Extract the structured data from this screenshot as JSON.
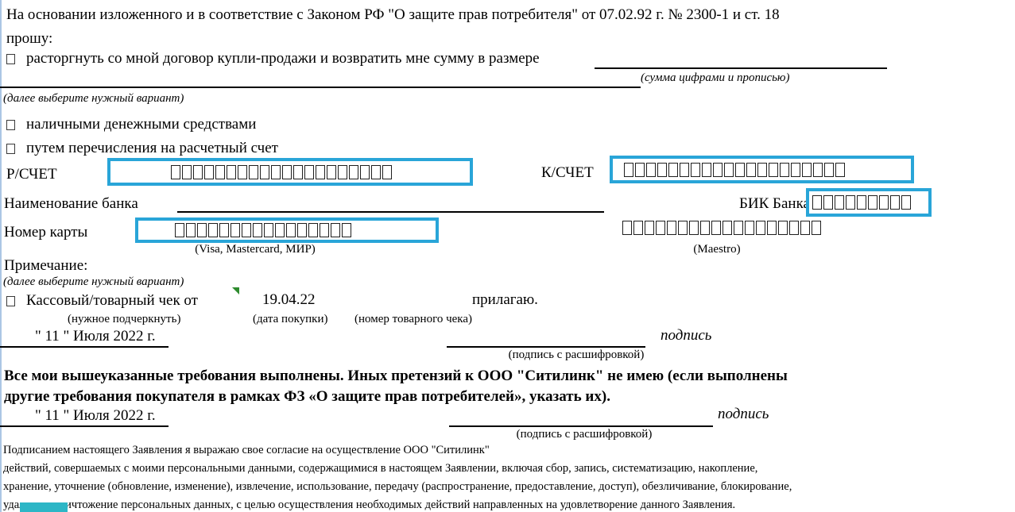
{
  "intro": {
    "line1": "На основании изложенного и в соответствие с Законом РФ \"О защите прав потребителя\" от 07.02.92 г. № 2300-1 и ст. 18",
    "line2": "прошу:"
  },
  "options": {
    "refund": "расторгнуть со мной договор купли-продажи и возвратить мне сумму в размере",
    "cash": "наличными денежными средствами",
    "transfer": "путем перечисления на расчетный счет"
  },
  "captions": {
    "sum": "(сумма цифрами и прописью)",
    "variant_hint": "(далее выберите нужный вариант)"
  },
  "fields": {
    "rschet_label": "Р/СЧЕТ",
    "rschet_cells": 20,
    "kschet_label": "К/СЧЕТ",
    "kschet_cells": 20,
    "bank_name_label": "Наименование банка",
    "bik_label": "БИК Банка",
    "bik_cells": 9,
    "card_label": "Номер карты",
    "card_cells": 16,
    "card_caption": "(Visa, Mastercard, МИР)",
    "maestro_cells": 18,
    "maestro_caption": "(Maestro)"
  },
  "note": {
    "label": "Примечание:",
    "hint": "(далее выберите нужный вариант)"
  },
  "receipt": {
    "option": "Кассовый/товарный чек от",
    "date_value": "19.04.22",
    "attach": "прилагаю.",
    "underline_hint": "(нужное подчеркнуть)",
    "date_hint": "(дата покупки)",
    "number_hint": "(номер товарного чека)"
  },
  "sign1": {
    "date": "\" 11 \" Июля 2022 г.",
    "word": "подпись",
    "caption": "(подпись с расшифровкой)"
  },
  "claims": {
    "line1": "Все мои вышеуказанные требования выполнены. Иных претензий к ООО \"Ситилинк\" не имею (если выполнены",
    "line2": "другие требования покупателя в рамках ФЗ «О защите прав потребителей», указать их)."
  },
  "sign2": {
    "date": "\" 11 \" Июля 2022 г.",
    "word": "подпись",
    "caption": "(подпись с расшифровкой)"
  },
  "consent": {
    "line1": "Подписанием настоящего Заявления я выражаю свое согласие на осуществление ООО \"Ситилинк\"",
    "line2": "действий, совершаемых с моими персональными данными, содержащимися в настоящем Заявлении, включая сбор, запись, систематизацию, накопление,",
    "line3": "хранение, уточнение (обновление, изменение), извлечение, использование, передачу (распространение, предоставление, доступ), обезличивание, блокирование,",
    "line4": "удаление, уничтожение персональных данных, с целью осуществления необходимых действий направленных на удовлетворение данного Заявления."
  },
  "colors": {
    "field_highlight": "#29a5d8",
    "teal_fragment": "#2db6c6",
    "marker_green": "#2e8b2e"
  }
}
